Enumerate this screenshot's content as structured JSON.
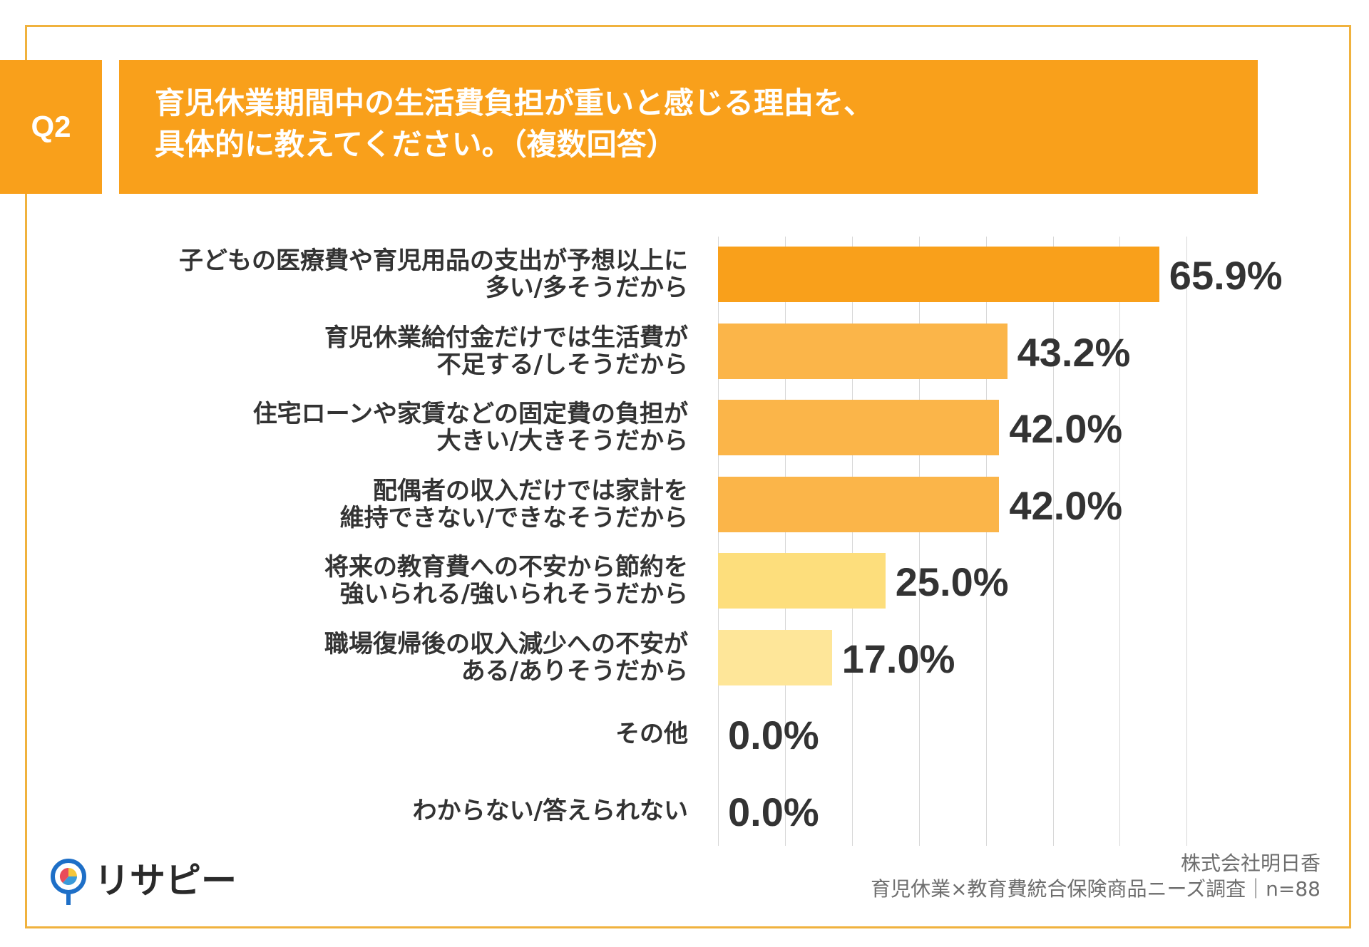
{
  "question": {
    "badge": "Q2",
    "title_lines": [
      "育児休業期間中の生活費負担が重いと感じる理由を、",
      "具体的に教えてください。（複数回答）"
    ]
  },
  "chart_data": {
    "type": "bar",
    "orientation": "horizontal",
    "title": "",
    "xlabel": "",
    "ylabel": "",
    "xlim": [
      0,
      70
    ],
    "grid": true,
    "categories": [
      [
        "子どもの医療費や育児用品の支出が予想以上に",
        "多い/多そうだから"
      ],
      [
        "育児休業給付金だけでは生活費が",
        "不足する/しそうだから"
      ],
      [
        "住宅ローンや家賃などの固定費の負担が",
        "大きい/大きそうだから"
      ],
      [
        "配偶者の収入だけでは家計を",
        "維持できない/できなそうだから"
      ],
      [
        "将来の教育費への不安から節約を",
        "強いられる/強いられそうだから"
      ],
      [
        "職場復帰後の収入減少への不安が",
        "ある/ありそうだから"
      ],
      [
        "その他"
      ],
      [
        "わからない/答えられない"
      ]
    ],
    "values": [
      65.9,
      43.2,
      42.0,
      42.0,
      25.0,
      17.0,
      0.0,
      0.0
    ],
    "value_labels": [
      "65.9%",
      "43.2%",
      "42.0%",
      "42.0%",
      "25.0%",
      "17.0%",
      "0.0%",
      "0.0%"
    ],
    "bar_colors": [
      "#F9A01B",
      "#FBB549",
      "#FBB549",
      "#FBB549",
      "#FDDE7C",
      "#FEE699",
      "#FEE699",
      "#FEE699"
    ]
  },
  "footer": {
    "logo_text": "リサピー",
    "source_lines": [
      "株式会社明日香",
      "育児休業×教育費統合保険商品ニーズ調査｜n=88"
    ]
  },
  "colors": {
    "accent": "#F9A01B",
    "frame": "#F0B23E",
    "text": "#333333",
    "grid": "#D7D7D7"
  }
}
